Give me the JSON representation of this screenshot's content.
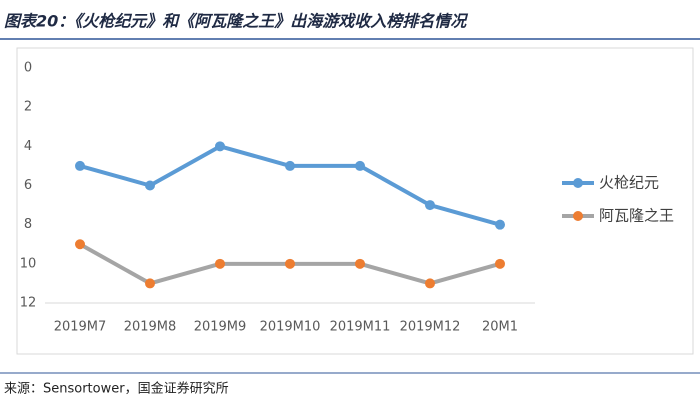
{
  "chart_data": {
    "type": "line",
    "title": "图表20：《火枪纪元》和《阿瓦隆之王》出海游戏收入榜排名情况",
    "source": "来源：Sensortower，国金证券研究所",
    "categories": [
      "2019M7",
      "2019M8",
      "2019M9",
      "2019M10",
      "2019M11",
      "2019M12",
      "20M1"
    ],
    "series": [
      {
        "name": "火枪纪元",
        "color": "#5b9bd5",
        "marker_color": "#5b9bd5",
        "values": [
          5,
          6,
          4,
          5,
          5,
          7,
          8
        ]
      },
      {
        "name": "阿瓦隆之王",
        "color": "#a5a5a5",
        "marker_color": "#ed7d31",
        "values": [
          9,
          11,
          10,
          10,
          10,
          11,
          10
        ]
      }
    ],
    "ylim": [
      0,
      12
    ],
    "yticks": [
      0,
      2,
      4,
      6,
      8,
      10,
      12
    ],
    "y_inverted": true,
    "grid": false,
    "legend": "right"
  }
}
